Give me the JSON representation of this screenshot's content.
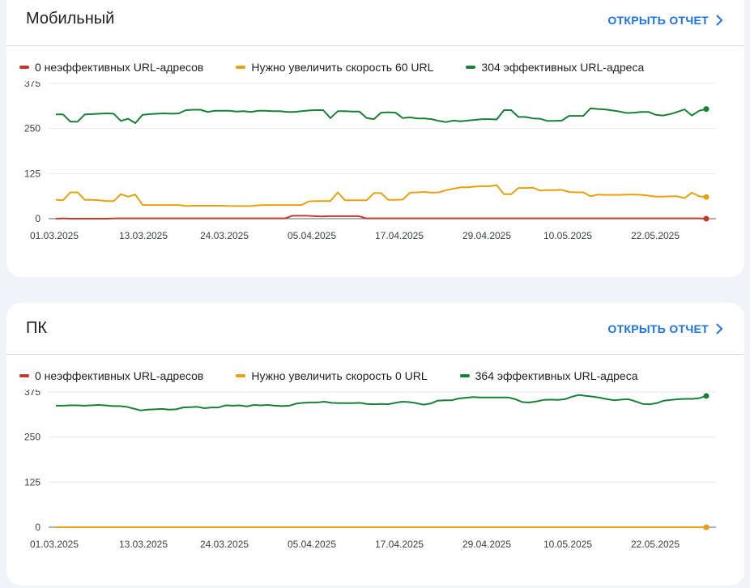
{
  "chart_data": [
    {
      "type": "line",
      "title": "Мобильный",
      "action_label": "ОТКРЫТЬ ОТЧЕТ",
      "x_ticks": [
        "01.03.2025",
        "13.03.2025",
        "24.03.2025",
        "05.04.2025",
        "17.04.2025",
        "29.04.2025",
        "10.05.2025",
        "22.05.2025"
      ],
      "y_ticks": [
        "375",
        "250",
        "125",
        "0"
      ],
      "ylim": [
        0,
        375
      ],
      "x_range": [
        "01.03.2025",
        "28.05.2025"
      ],
      "grid": true,
      "legend_position": "top-left",
      "series": [
        {
          "name": "0 неэффективных URL-адресов",
          "color": "#c5392a",
          "values": [
            0,
            1,
            0,
            0,
            0,
            0,
            0,
            0,
            1,
            1,
            1,
            1,
            1,
            1,
            1,
            1,
            1,
            1,
            1,
            1,
            1,
            1,
            1,
            1,
            1,
            1,
            1,
            1,
            1,
            1,
            1,
            1,
            8,
            8,
            8,
            7,
            6,
            7,
            7,
            7,
            7,
            7,
            1,
            1,
            1,
            1,
            1,
            1,
            1,
            1,
            1,
            1,
            1,
            1,
            1,
            1,
            1,
            1,
            1,
            1,
            1,
            1,
            1,
            1,
            1,
            1,
            1,
            1,
            1,
            1,
            1,
            1,
            1,
            1,
            1,
            1,
            1,
            1,
            1,
            1,
            1,
            1,
            1,
            1,
            1,
            1,
            1,
            1,
            0
          ]
        },
        {
          "name": "Нужно увеличить скорость 60 URL",
          "color": "#e8a10c",
          "values": [
            52,
            51,
            73,
            73,
            52,
            52,
            51,
            49,
            49,
            68,
            61,
            67,
            38,
            38,
            38,
            38,
            38,
            38,
            35,
            36,
            36,
            36,
            36,
            36,
            35,
            35,
            35,
            35,
            37,
            38,
            38,
            38,
            38,
            38,
            38,
            48,
            49,
            49,
            49,
            73,
            51,
            51,
            51,
            51,
            71,
            71,
            52,
            52,
            53,
            72,
            73,
            74,
            72,
            73,
            79,
            83,
            87,
            87,
            89,
            90,
            90,
            93,
            68,
            68,
            85,
            85,
            86,
            78,
            79,
            79,
            80,
            74,
            73,
            73,
            62,
            67,
            66,
            66,
            66,
            67,
            67,
            66,
            64,
            61,
            61,
            62,
            62,
            57,
            72,
            62,
            60
          ]
        },
        {
          "name": "304 эффективных URL-адреса",
          "color": "#188038",
          "values": [
            289,
            289,
            269,
            269,
            289,
            290,
            291,
            292,
            291,
            271,
            277,
            265,
            288,
            290,
            291,
            292,
            291,
            292,
            301,
            302,
            302,
            296,
            299,
            299,
            299,
            297,
            298,
            296,
            299,
            299,
            298,
            298,
            296,
            296,
            298,
            300,
            301,
            301,
            279,
            298,
            298,
            297,
            297,
            279,
            276,
            294,
            295,
            294,
            279,
            281,
            278,
            278,
            276,
            271,
            268,
            272,
            270,
            272,
            274,
            276,
            276,
            275,
            301,
            301,
            282,
            282,
            278,
            277,
            271,
            271,
            272,
            285,
            285,
            285,
            306,
            304,
            303,
            300,
            297,
            293,
            294,
            296,
            296,
            288,
            286,
            290,
            296,
            303,
            286,
            299,
            304
          ]
        }
      ]
    },
    {
      "type": "line",
      "title": "ПК",
      "action_label": "ОТКРЫТЬ ОТЧЕТ",
      "x_ticks": [
        "01.03.2025",
        "13.03.2025",
        "24.03.2025",
        "05.04.2025",
        "17.04.2025",
        "29.04.2025",
        "10.05.2025",
        "22.05.2025"
      ],
      "y_ticks": [
        "375",
        "250",
        "125",
        "0"
      ],
      "ylim": [
        0,
        375
      ],
      "x_range": [
        "01.03.2025",
        "28.05.2025"
      ],
      "grid": true,
      "legend_position": "top-left",
      "series": [
        {
          "name": "0 неэффективных URL-адресов",
          "color": "#c5392a",
          "values": [
            0,
            0,
            0,
            0,
            0,
            0,
            0,
            0,
            0,
            0,
            0,
            0,
            0,
            0,
            0,
            0,
            0,
            0,
            0,
            0,
            0,
            0,
            0,
            0,
            0,
            0,
            0,
            0,
            0,
            0,
            0,
            0,
            0,
            0,
            0,
            0,
            0,
            0,
            0,
            0,
            0,
            0,
            0,
            0,
            0,
            0,
            0,
            0,
            0,
            0,
            0,
            0,
            0,
            0,
            0,
            0,
            0,
            0,
            0,
            0,
            0,
            0,
            0,
            0,
            0,
            0,
            0,
            0,
            0,
            0,
            0,
            0,
            0,
            0,
            0,
            0,
            0,
            0,
            0,
            0,
            0,
            0,
            0,
            0,
            0,
            0,
            0
          ]
        },
        {
          "name": "Нужно увеличить скорость 0 URL",
          "color": "#e8a10c",
          "values": [
            0,
            0,
            0,
            0,
            0,
            0,
            0,
            0,
            0,
            0,
            0,
            0,
            0,
            0,
            0,
            0,
            0,
            0,
            0,
            0,
            0,
            0,
            0,
            0,
            0,
            0,
            0,
            0,
            0,
            0,
            0,
            0,
            0,
            0,
            0,
            0,
            0,
            0,
            0,
            0,
            0,
            0,
            0,
            0,
            0,
            0,
            0,
            0,
            0,
            0,
            0,
            0,
            0,
            0,
            0,
            0,
            0,
            0,
            0,
            0,
            0,
            0,
            0,
            0,
            0,
            0,
            0,
            0,
            0,
            0,
            0,
            0,
            0,
            0,
            0,
            0,
            0,
            0,
            0,
            0,
            0,
            0,
            0,
            0,
            0,
            0,
            0
          ]
        },
        {
          "name": "364 эффективных URL-адреса",
          "color": "#188038",
          "values": [
            337,
            337,
            338,
            338,
            337,
            338,
            339,
            338,
            336,
            336,
            334,
            329,
            324,
            326,
            327,
            328,
            326,
            327,
            332,
            333,
            334,
            330,
            332,
            332,
            338,
            337,
            338,
            335,
            339,
            338,
            339,
            337,
            336,
            337,
            343,
            345,
            346,
            346,
            348,
            345,
            344,
            344,
            344,
            345,
            342,
            341,
            342,
            341,
            345,
            348,
            347,
            344,
            340,
            343,
            351,
            352,
            352,
            357,
            359,
            361,
            360,
            360,
            360,
            360,
            360,
            355,
            347,
            346,
            349,
            353,
            354,
            353,
            355,
            362,
            367,
            364,
            362,
            359,
            355,
            352,
            354,
            355,
            349,
            342,
            341,
            344,
            351,
            353,
            355,
            356,
            356,
            358,
            364
          ]
        }
      ]
    }
  ]
}
